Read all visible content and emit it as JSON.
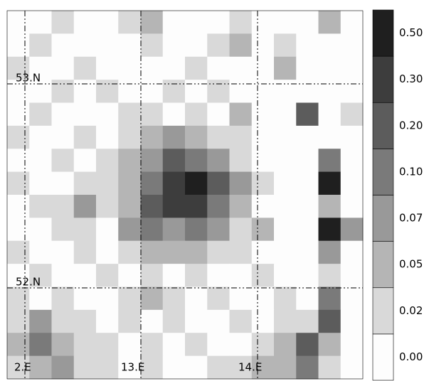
{
  "map": {
    "lat_labels": [
      "53.N",
      "52.N"
    ],
    "lon_labels": [
      "2.E",
      "13.E",
      "14.E"
    ],
    "grid": [
      [
        0.01,
        0.01,
        0.02,
        0.01,
        0.01,
        0.02,
        0.05,
        0.01,
        0.01,
        0.01,
        0.02,
        0.01,
        0,
        0,
        0.05,
        0
      ],
      [
        0.01,
        0.02,
        0.01,
        0.01,
        0.01,
        0.01,
        0.02,
        0.01,
        0.01,
        0.02,
        0.05,
        0.01,
        0.02,
        0,
        0,
        0
      ],
      [
        0.02,
        0.01,
        0.01,
        0.02,
        0.01,
        0.01,
        0.01,
        0.01,
        0.02,
        0.01,
        0.01,
        0.01,
        0.05,
        0,
        0,
        0
      ],
      [
        0.01,
        0.01,
        0.02,
        0.01,
        0.02,
        0.01,
        0.01,
        0.02,
        0.01,
        0.02,
        0.01,
        0.01,
        0,
        0.01,
        0,
        0
      ],
      [
        0.01,
        0.02,
        0.01,
        0.01,
        0.01,
        0.02,
        0.02,
        0.01,
        0.02,
        0.01,
        0.05,
        0.01,
        0,
        0.2,
        0,
        0.02
      ],
      [
        0.02,
        0.01,
        0.01,
        0.02,
        0.01,
        0.02,
        0.05,
        0.07,
        0.05,
        0.02,
        0.02,
        0.01,
        0,
        0,
        0,
        0
      ],
      [
        0.01,
        0.01,
        0.02,
        0.01,
        0.02,
        0.05,
        0.07,
        0.2,
        0.1,
        0.07,
        0.02,
        0.01,
        0,
        0,
        0.1,
        0
      ],
      [
        0.02,
        0.01,
        0.01,
        0.02,
        0.02,
        0.05,
        0.1,
        0.3,
        0.5,
        0.2,
        0.07,
        0.02,
        0,
        0,
        0.5,
        0
      ],
      [
        0.01,
        0.02,
        0.02,
        0.07,
        0.02,
        0.05,
        0.2,
        0.3,
        0.3,
        0.1,
        0.05,
        0.01,
        0,
        0,
        0.05,
        0
      ],
      [
        0.01,
        0.01,
        0.02,
        0.02,
        0.01,
        0.07,
        0.1,
        0.07,
        0.1,
        0.07,
        0.02,
        0.05,
        0,
        0,
        0.5,
        0.07
      ],
      [
        0.02,
        0.01,
        0.01,
        0.02,
        0.01,
        0.02,
        0.05,
        0.05,
        0.05,
        0.02,
        0.02,
        0.01,
        0.01,
        0,
        0.07,
        0
      ],
      [
        0.01,
        0.02,
        0.01,
        0.01,
        0.02,
        0.01,
        0.02,
        0.01,
        0.02,
        0.01,
        0.01,
        0.02,
        0.01,
        0.01,
        0.02,
        0
      ],
      [
        0.02,
        0.01,
        0.02,
        0.01,
        0.01,
        0.02,
        0.05,
        0.02,
        0.01,
        0.02,
        0.01,
        0.01,
        0.02,
        0.01,
        0.1,
        0
      ],
      [
        0.02,
        0.07,
        0.02,
        0.02,
        0.01,
        0.02,
        0.01,
        0.02,
        0.01,
        0.01,
        0.02,
        0.01,
        0.02,
        0.02,
        0.2,
        0
      ],
      [
        0.05,
        0.1,
        0.05,
        0.02,
        0.02,
        0.01,
        0.02,
        0.01,
        0.02,
        0.01,
        0.01,
        0.02,
        0.05,
        0.2,
        0.05,
        0
      ],
      [
        0.02,
        0.05,
        0.07,
        0.02,
        0.02,
        0.01,
        0.02,
        0.01,
        0.01,
        0.02,
        0.02,
        0.05,
        0.05,
        0.1,
        0.02,
        0
      ]
    ]
  },
  "colorbar": {
    "levels": [
      {
        "value": 0,
        "label": "0.00"
      },
      {
        "value": 0.02,
        "label": "0.02"
      },
      {
        "value": 0.05,
        "label": "0.05"
      },
      {
        "value": 0.07,
        "label": "0.07"
      },
      {
        "value": 0.1,
        "label": "0.10"
      },
      {
        "value": 0.2,
        "label": "0.20"
      },
      {
        "value": 0.3,
        "label": "0.30"
      },
      {
        "value": 0.5,
        "label": "0.50"
      }
    ],
    "colors": [
      "#fdfdfd",
      "#d9d9d9",
      "#b5b5b5",
      "#999999",
      "#7a7a7a",
      "#5c5c5c",
      "#3d3d3d",
      "#1f1f1f"
    ]
  }
}
